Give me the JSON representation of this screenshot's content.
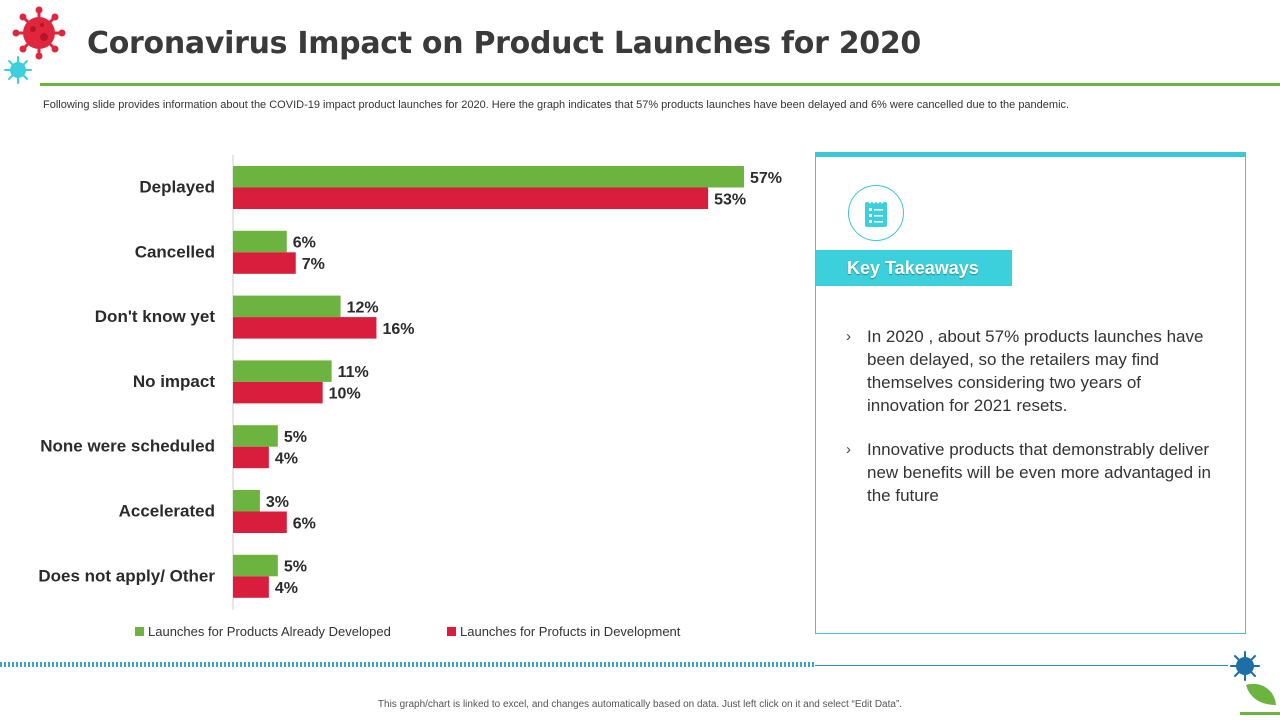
{
  "title": "Coronavirus Impact on Product Launches for 2020",
  "subtitle": "Following slide provides information about the COVID-19 impact product launches for 2020. Here  the graph indicates that 57% products launches have been delayed and 6% were  cancelled due to the pandemic.",
  "chart_data": {
    "type": "bar",
    "orientation": "horizontal",
    "title": "",
    "xlabel": "",
    "ylabel": "",
    "xlim": [
      0,
      60
    ],
    "grid": false,
    "legend_position": "bottom",
    "value_suffix": "%",
    "categories": [
      "Deplayed",
      "Cancelled",
      "Don't know yet",
      "No impact",
      "None were scheduled",
      "Accelerated",
      "Does not apply/ Other"
    ],
    "series": [
      {
        "name": "Launches for Products Already Developed",
        "color": "#6db33f",
        "values": [
          57,
          6,
          12,
          11,
          5,
          3,
          5
        ]
      },
      {
        "name": "Launches for Profucts in Development",
        "color": "#d81e3c",
        "values": [
          53,
          7,
          16,
          10,
          4,
          6,
          4
        ]
      }
    ]
  },
  "panel": {
    "heading": "Key Takeaways",
    "bullet_glyph": "›",
    "icon": "checklist-icon",
    "items": [
      "In 2020 , about 57% products launches have been delayed, so the retailers may find themselves considering two years of innovation for 2021 resets.",
      "Innovative products that demonstrably deliver new benefits will be even more advantaged in the future"
    ]
  },
  "footer": "This graph/chart is linked to excel, and changes automatically based on data. Just left click on it and select “Edit Data”.",
  "colors": {
    "accent_green": "#6db33f",
    "accent_cyan": "#3cd0dc",
    "bar_red": "#d81e3c"
  }
}
